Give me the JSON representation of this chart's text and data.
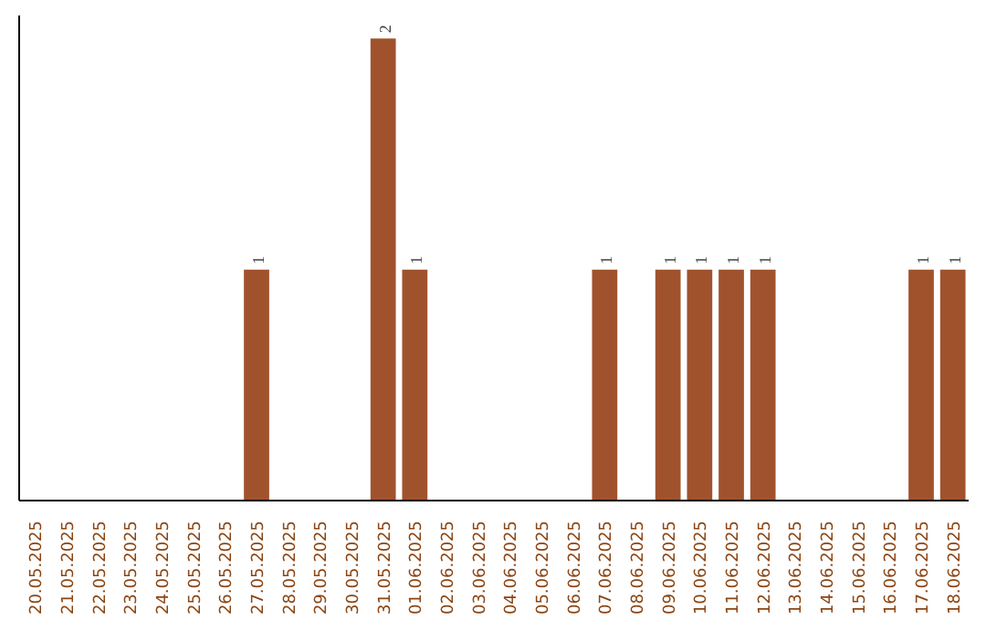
{
  "chart_data": {
    "type": "bar",
    "categories": [
      "20.05.2025",
      "21.05.2025",
      "22.05.2025",
      "23.05.2025",
      "24.05.2025",
      "25.05.2025",
      "26.05.2025",
      "27.05.2025",
      "28.05.2025",
      "29.05.2025",
      "30.05.2025",
      "31.05.2025",
      "01.06.2025",
      "02.06.2025",
      "03.06.2025",
      "04.06.2025",
      "05.06.2025",
      "06.06.2025",
      "07.06.2025",
      "08.06.2025",
      "09.06.2025",
      "10.06.2025",
      "11.06.2025",
      "12.06.2025",
      "13.06.2025",
      "14.06.2025",
      "15.06.2025",
      "16.06.2025",
      "17.06.2025",
      "18.06.2025"
    ],
    "values": [
      0,
      0,
      0,
      0,
      0,
      0,
      0,
      1,
      0,
      0,
      0,
      2,
      1,
      0,
      0,
      0,
      0,
      0,
      1,
      0,
      1,
      1,
      1,
      1,
      0,
      0,
      0,
      0,
      1,
      1
    ],
    "value_labels": [
      null,
      null,
      null,
      null,
      null,
      null,
      null,
      "1",
      null,
      null,
      null,
      "2",
      "1",
      null,
      null,
      null,
      null,
      null,
      "1",
      null,
      "1",
      "1",
      "1",
      "1",
      null,
      null,
      null,
      null,
      "1",
      "1"
    ],
    "color": "#a0522d",
    "tick_labels": "x",
    "grid": false
  }
}
